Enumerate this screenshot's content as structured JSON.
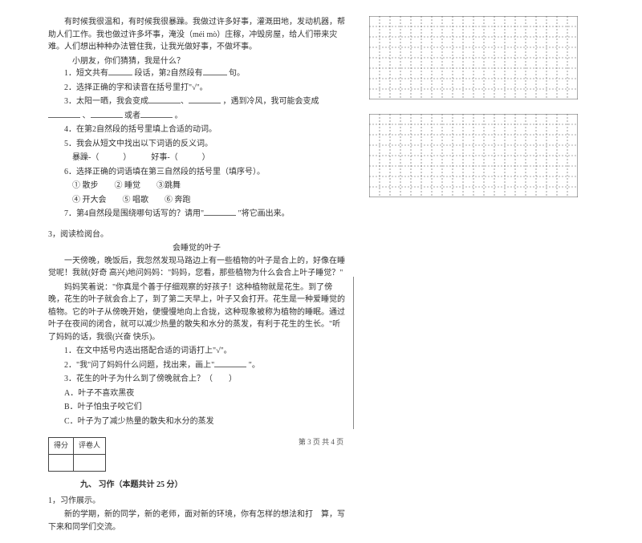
{
  "passage1": {
    "p1": "有时候我很温和，有时候我很暴躁。我做过许多好事，灌溉田地，发动机器，帮助人们工作。我也做过许多坏事，淹没（méi  mò）庄稼，冲毁房屋，给人们带来灾难。人们想出种种办法管住我，让我光做好事，不做坏事。",
    "p2": "小朋友，你们猜猜，我是什么？",
    "q1a": "1．短文共有",
    "q1b": "段话，第2自然段有",
    "q1c": "句。",
    "q2": "2．选择正确的字和读音在括号里打\"√\"。",
    "q3a": "3．太阳一晒，我会变成",
    "q3b": "，遇到冷风，我可能会变成",
    "q3c": "、",
    "q3d": "或者",
    "q3e": "。",
    "q4": "4．在第2自然段的括号里填上合适的动词。",
    "q5": "5．我会从短文中找出以下词语的反义词。",
    "q5t": "暴躁-（　　　）　　　好事-（　　　）",
    "q6": "6．选择正确的词语填在第三自然段的括号里（填序号）。",
    "q6a": "① 散步　　② 睡觉　　③跳舞",
    "q6b": "④ 开大会　　⑤ 唱歌　　⑥ 奔跑",
    "q7a": "7．第4自然段是围绕哪句话写的？请用\"",
    "q7b": "\"将它画出来。"
  },
  "item3": "3，阅读检阅台。",
  "passage2": {
    "title": "会睡觉的叶子",
    "p1": "一天傍晚，晚饭后，我忽然发现马路边上有一些植物的叶子是合上的，好像在睡觉呢！我就(好奇  高兴)地问妈妈：\"妈妈，您看，那些植物为什么会合上叶子睡觉？\"",
    "p2": "妈妈笑着说：\"你真是个善于仔细观察的好孩子！这种植物就是花生。到了傍晚，花生的叶子就会合上了，到了第二天早上，叶子又会打开。花生是一种爱睡觉的植物。它的叶子从傍晚开始，便慢慢地向上合拢，这种现象被称为植物的睡眠。通过叶子在夜间的闭合，就可以减少热量的散失和水分的蒸发，有利于花生的生长。\"听了妈妈的话，我很(兴奋  快乐)。",
    "q1": "1．在文中括号内选出搭配合适的词语打上\"√\"。",
    "q2a": "2．\"我\"问了妈妈什么问题，找出来，画上\"",
    "q2b": "\"。",
    "q3": "3．花生的叶子为什么到了傍晚就合上？（　　）",
    "q3a": "A．叶子不喜欢黑夜",
    "q3b": "B．叶子怕虫子咬它们",
    "q3c": "C．叶子为了减少热量的散失和水分的蒸发"
  },
  "score": {
    "col1": "得分",
    "col2": "评卷人"
  },
  "section9": "九、 习作（本题共计 25 分）",
  "writing": {
    "t": "1，习作展示。",
    "p": "新的学期，新的同学，新的老师，面对新的环境，你有怎样的想法和打　算，写下来和同学们交流。"
  },
  "footer": "第 3 页  共 4 页",
  "grid": {
    "cols": 20,
    "rows": 8,
    "cell": 13,
    "border_color": "#555555",
    "dash": "2,2"
  }
}
